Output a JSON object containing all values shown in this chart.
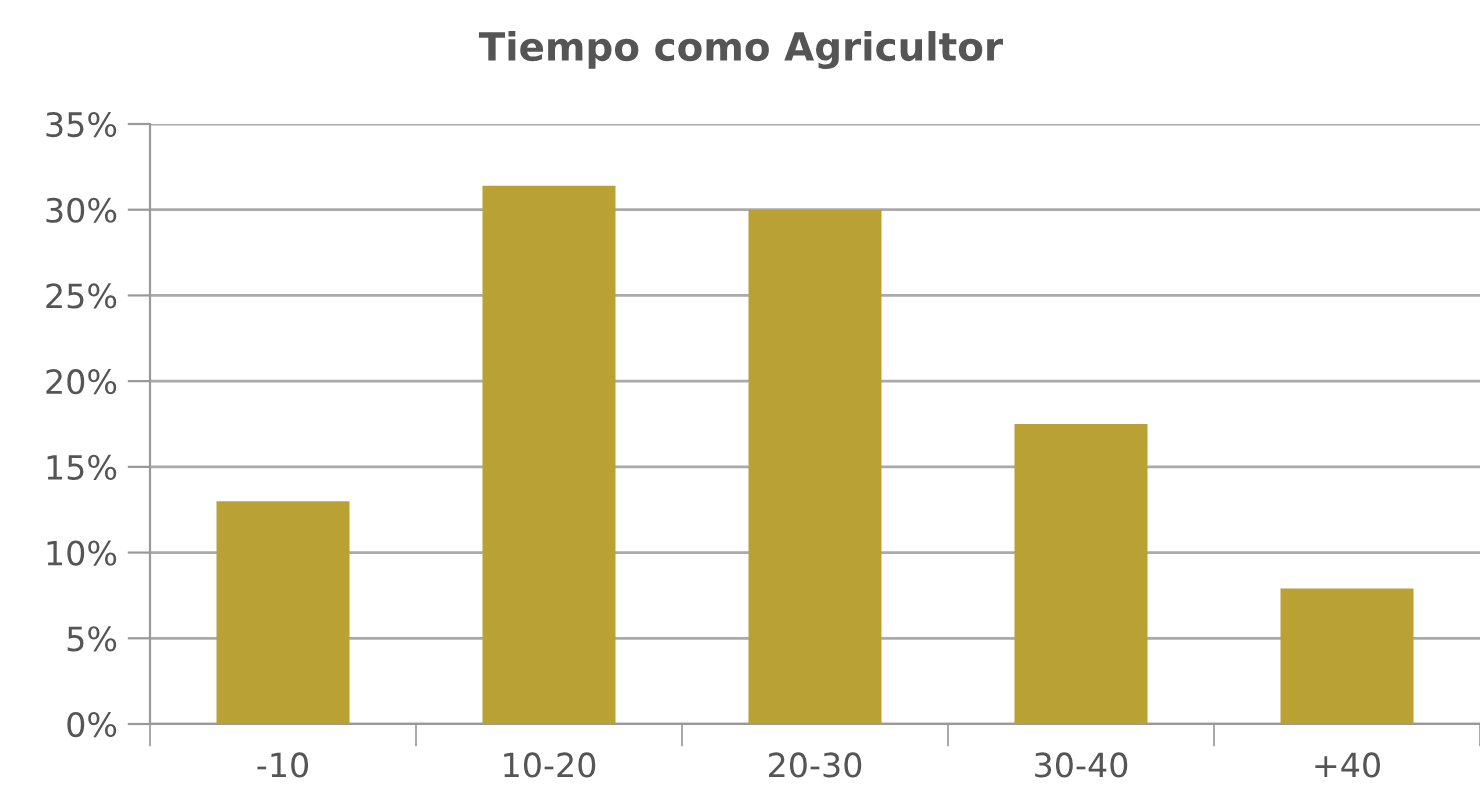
{
  "chart_data": {
    "type": "bar",
    "title": "Tiempo como Agricultor",
    "categories": [
      "-10",
      "10-20",
      "20-30",
      "30-40",
      "+40"
    ],
    "values": [
      13.0,
      31.4,
      30.0,
      17.5,
      7.9
    ],
    "color": "#b9a233",
    "ylim": [
      0,
      35
    ],
    "yticks": [
      {
        "value": 0,
        "label": "0%"
      },
      {
        "value": 5,
        "label": "5%"
      },
      {
        "value": 10,
        "label": "10%"
      },
      {
        "value": 15,
        "label": "15%"
      },
      {
        "value": 20,
        "label": "20%"
      },
      {
        "value": 25,
        "label": "25%"
      },
      {
        "value": 30,
        "label": "30%"
      },
      {
        "value": 35,
        "label": "35%"
      }
    ],
    "grid": "y",
    "legend": false
  }
}
